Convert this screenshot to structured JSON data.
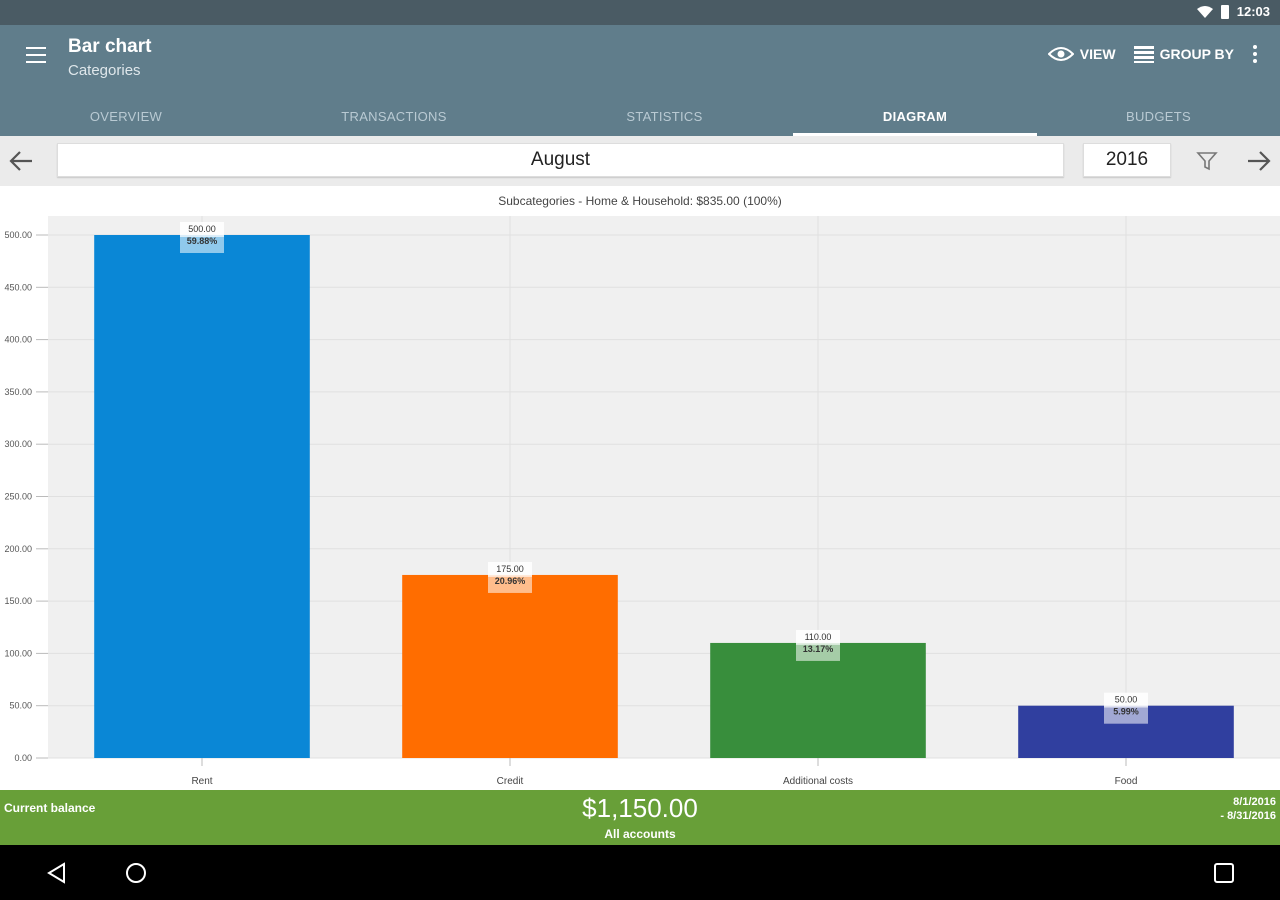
{
  "status_bar": {
    "time": "12:03"
  },
  "app_bar": {
    "title": "Bar chart",
    "subtitle": "Categories",
    "view_label": "VIEW",
    "group_by_label": "GROUP BY"
  },
  "tabs": [
    {
      "label": "OVERVIEW"
    },
    {
      "label": "TRANSACTIONS"
    },
    {
      "label": "STATISTICS"
    },
    {
      "label": "DIAGRAM"
    },
    {
      "label": "BUDGETS"
    }
  ],
  "period": {
    "month": "August",
    "year": "2016"
  },
  "chart_data": {
    "type": "bar",
    "title": "Subcategories - Home & Household: $835.00 (100%)",
    "categories": [
      "Rent",
      "Credit",
      "Additional costs",
      "Food"
    ],
    "values": [
      500.0,
      175.0,
      110.0,
      50.0
    ],
    "value_labels": [
      "500.00",
      "175.00",
      "110.00",
      "50.00"
    ],
    "percent_labels": [
      "59.88%",
      "20.96%",
      "13.17%",
      "5.99%"
    ],
    "colors": [
      "#0a87d6",
      "#ff6d00",
      "#388e3c",
      "#303f9f"
    ],
    "ylim": [
      0,
      500
    ],
    "yticks": [
      "0.00",
      "50.00",
      "100.00",
      "150.00",
      "200.00",
      "250.00",
      "300.00",
      "350.00",
      "400.00",
      "450.00",
      "500.00"
    ],
    "grid": true
  },
  "footer": {
    "balance_label": "Current balance",
    "balance_amount": "$1,150.00",
    "accounts_label": "All accounts",
    "range_start": "8/1/2016",
    "range_end": "- 8/31/2016"
  }
}
